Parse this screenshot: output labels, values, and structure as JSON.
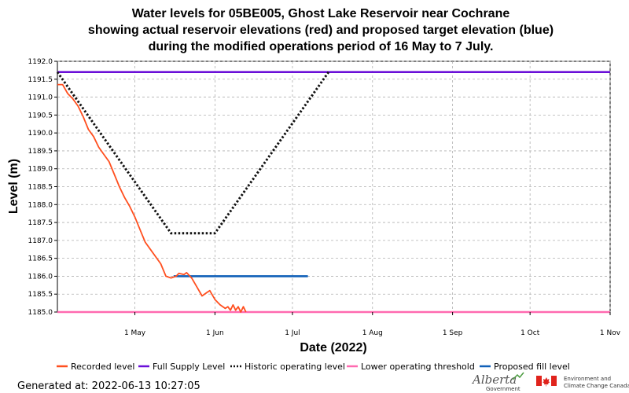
{
  "chart_data": {
    "type": "line",
    "title_lines": [
      "Water levels for 05BE005, Ghost Lake Reservoir near Cochrane",
      "showing actual reservoir elevations (red) and proposed target elevation (blue)",
      "during the modified operations period of 16 May to 7 July."
    ],
    "xlabel": "Date (2022)",
    "ylabel": "Level (m)",
    "xlim": [
      "2022-04-01",
      "2022-11-01"
    ],
    "ylim": [
      1185.0,
      1192.0
    ],
    "x_ticks": [
      {
        "date": "2022-05-01",
        "label": "1 May"
      },
      {
        "date": "2022-06-01",
        "label": "1 Jun"
      },
      {
        "date": "2022-07-01",
        "label": "1 Jul"
      },
      {
        "date": "2022-08-01",
        "label": "1 Aug"
      },
      {
        "date": "2022-09-01",
        "label": "1 Sep"
      },
      {
        "date": "2022-10-01",
        "label": "1 Oct"
      },
      {
        "date": "2022-11-01",
        "label": "1 Nov"
      }
    ],
    "y_ticks": [
      {
        "value": 1185.0,
        "label": "1185.0"
      },
      {
        "value": 1185.5,
        "label": "1185.5"
      },
      {
        "value": 1186.0,
        "label": "1186.0"
      },
      {
        "value": 1186.5,
        "label": "1186.5"
      },
      {
        "value": 1187.0,
        "label": "1187.0"
      },
      {
        "value": 1187.5,
        "label": "1187.5"
      },
      {
        "value": 1188.0,
        "label": "1188.0"
      },
      {
        "value": 1188.5,
        "label": "1188.5"
      },
      {
        "value": 1189.0,
        "label": "1189.0"
      },
      {
        "value": 1189.5,
        "label": "1189.5"
      },
      {
        "value": 1190.0,
        "label": "1190.0"
      },
      {
        "value": 1190.5,
        "label": "1190.5"
      },
      {
        "value": 1191.0,
        "label": "1191.0"
      },
      {
        "value": 1191.5,
        "label": "1191.5"
      },
      {
        "value": 1192.0,
        "label": "1192.0"
      }
    ],
    "grid": true,
    "legend_position": "bottom",
    "series": [
      {
        "name": "Recorded level",
        "color": "#ff4f1f",
        "style": "solid",
        "points": [
          [
            "2022-04-01",
            1191.35
          ],
          [
            "2022-04-03",
            1191.35
          ],
          [
            "2022-04-05",
            1191.1
          ],
          [
            "2022-04-07",
            1190.95
          ],
          [
            "2022-04-09",
            1190.75
          ],
          [
            "2022-04-11",
            1190.45
          ],
          [
            "2022-04-13",
            1190.1
          ],
          [
            "2022-04-15",
            1189.9
          ],
          [
            "2022-04-17",
            1189.6
          ],
          [
            "2022-04-19",
            1189.4
          ],
          [
            "2022-04-21",
            1189.2
          ],
          [
            "2022-04-23",
            1188.85
          ],
          [
            "2022-04-25",
            1188.5
          ],
          [
            "2022-04-27",
            1188.2
          ],
          [
            "2022-04-29",
            1187.95
          ],
          [
            "2022-05-01",
            1187.65
          ],
          [
            "2022-05-03",
            1187.3
          ],
          [
            "2022-05-05",
            1186.95
          ],
          [
            "2022-05-07",
            1186.75
          ],
          [
            "2022-05-09",
            1186.55
          ],
          [
            "2022-05-11",
            1186.35
          ],
          [
            "2022-05-13",
            1186.0
          ],
          [
            "2022-05-15",
            1185.95
          ],
          [
            "2022-05-17",
            1186.0
          ],
          [
            "2022-05-18",
            1186.08
          ],
          [
            "2022-05-20",
            1186.05
          ],
          [
            "2022-05-21",
            1186.1
          ],
          [
            "2022-05-23",
            1185.95
          ],
          [
            "2022-05-25",
            1185.7
          ],
          [
            "2022-05-27",
            1185.45
          ],
          [
            "2022-05-29",
            1185.55
          ],
          [
            "2022-05-30",
            1185.6
          ],
          [
            "2022-06-01",
            1185.35
          ],
          [
            "2022-06-03",
            1185.2
          ],
          [
            "2022-06-05",
            1185.1
          ],
          [
            "2022-06-06",
            1185.15
          ],
          [
            "2022-06-07",
            1185.05
          ],
          [
            "2022-06-08",
            1185.2
          ],
          [
            "2022-06-09",
            1185.05
          ],
          [
            "2022-06-10",
            1185.15
          ],
          [
            "2022-06-11",
            1185.0
          ],
          [
            "2022-06-12",
            1185.15
          ],
          [
            "2022-06-13",
            1185.0
          ]
        ]
      },
      {
        "name": "Full Supply Level",
        "color": "#6a0fd8",
        "style": "solid",
        "points": [
          [
            "2022-04-01",
            1191.7
          ],
          [
            "2022-11-01",
            1191.7
          ]
        ]
      },
      {
        "name": "Historic operating level",
        "color": "#111111",
        "style": "dotted",
        "points": [
          [
            "2022-04-01",
            1191.7
          ],
          [
            "2022-05-15",
            1187.2
          ],
          [
            "2022-06-01",
            1187.2
          ],
          [
            "2022-07-15",
            1191.7
          ]
        ]
      },
      {
        "name": "Lower operating threshold",
        "color": "#ff6ab0",
        "style": "solid",
        "points": [
          [
            "2022-04-01",
            1185.0
          ],
          [
            "2022-11-01",
            1185.0
          ]
        ]
      },
      {
        "name": "Proposed fill level",
        "color": "#1060b8",
        "style": "solid",
        "points": [
          [
            "2022-05-16",
            1186.0
          ],
          [
            "2022-07-07",
            1186.0
          ]
        ]
      }
    ]
  },
  "footer": {
    "generated": "Generated at: 2022-06-13 10:27:05",
    "logo_alberta": "Alberta",
    "logo_alberta_sub": "Government",
    "logo_eccc_line1": "Environment and",
    "logo_eccc_line2": "Climate Change Canada"
  },
  "colors": {
    "grid": "#b0b0b0",
    "canada_red": "#e0231c"
  }
}
